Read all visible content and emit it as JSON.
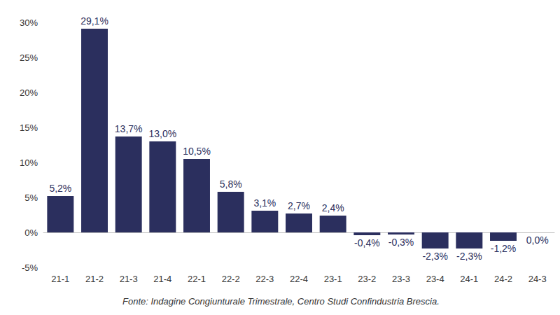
{
  "chart_data": {
    "type": "bar",
    "categories": [
      "21-1",
      "21-2",
      "21-3",
      "21-4",
      "22-1",
      "22-2",
      "22-3",
      "22-4",
      "23-1",
      "23-2",
      "23-3",
      "23-4",
      "24-1",
      "24-2",
      "24-3"
    ],
    "values": [
      5.2,
      29.1,
      13.7,
      13.0,
      10.5,
      5.8,
      3.1,
      2.7,
      2.4,
      -0.4,
      -0.3,
      -2.3,
      -2.3,
      -1.2,
      0.0
    ],
    "value_labels": [
      "5,2%",
      "29,1%",
      "13,7%",
      "13,0%",
      "10,5%",
      "5,8%",
      "3,1%",
      "2,7%",
      "2,4%",
      "-0,4%",
      "-0,3%",
      "-2,3%",
      "-2,3%",
      "-1,2%",
      "0,0%"
    ],
    "color": "#2b2f5e",
    "ylim": [
      -5,
      30
    ],
    "yticks": [
      {
        "value": -5,
        "label": "-5%"
      },
      {
        "value": 0,
        "label": "0%"
      },
      {
        "value": 5,
        "label": "5%"
      },
      {
        "value": 10,
        "label": "10%"
      },
      {
        "value": 15,
        "label": "15%"
      },
      {
        "value": 20,
        "label": "20%"
      },
      {
        "value": 25,
        "label": "25%"
      },
      {
        "value": 30,
        "label": "30%"
      }
    ],
    "grid": false,
    "data_labels": true,
    "source": "Fonte: Indagine Congiunturale Trimestrale, Centro Studi Confindustria Brescia."
  }
}
